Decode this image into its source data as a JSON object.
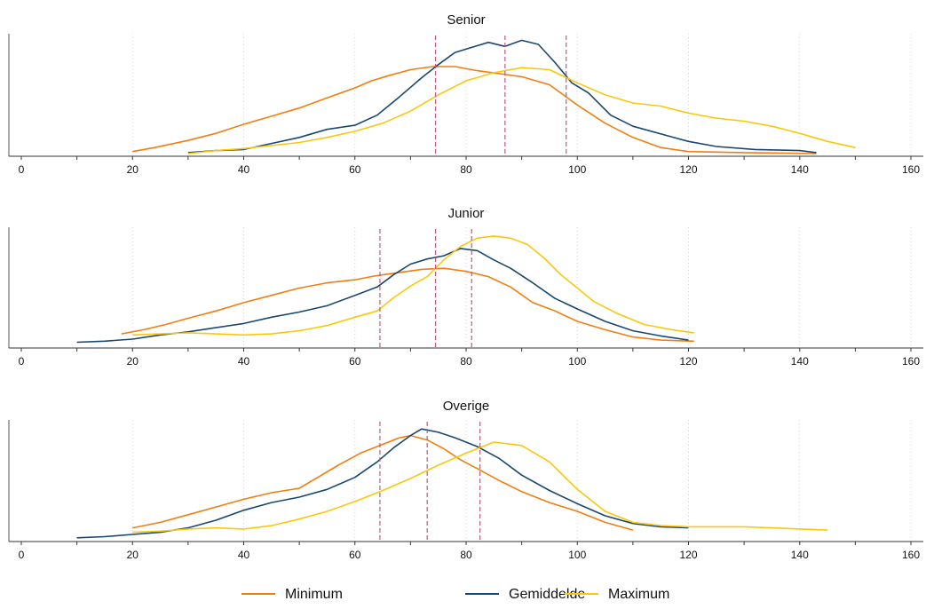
{
  "chart_data": {
    "type": "line",
    "xlim": [
      0,
      160
    ],
    "xticks": [
      "0",
      "20",
      "40",
      "60",
      "80",
      "100",
      "120",
      "140",
      "160"
    ],
    "xtick_values": [
      0,
      20,
      40,
      60,
      80,
      100,
      120,
      140,
      160
    ],
    "grid": "vertical dotted",
    "legend_position": "bottom",
    "legend": [
      {
        "label": "Minimum",
        "color": "#f47d0f"
      },
      {
        "label": "Gemiddelde",
        "color": "#1a476f"
      },
      {
        "label": "Maximum",
        "color": "#f9c80e"
      }
    ],
    "colors": {
      "minimum": "#f47d0f",
      "gemiddelde": "#1a476f",
      "maximum": "#f9c80e",
      "reference": "#c0587e"
    },
    "panels": [
      {
        "title": "Senior",
        "reference_lines_x": [
          74.5,
          87.0,
          98.0
        ],
        "series": [
          {
            "name": "Minimum",
            "points": [
              [
                20,
                0.02
              ],
              [
                24,
                0.06
              ],
              [
                30,
                0.13
              ],
              [
                35,
                0.2
              ],
              [
                40,
                0.29
              ],
              [
                45,
                0.37
              ],
              [
                50,
                0.45
              ],
              [
                55,
                0.55
              ],
              [
                60,
                0.65
              ],
              [
                63,
                0.72
              ],
              [
                66,
                0.77
              ],
              [
                70,
                0.83
              ],
              [
                74,
                0.86
              ],
              [
                78,
                0.86
              ],
              [
                82,
                0.82
              ],
              [
                86,
                0.79
              ],
              [
                90,
                0.76
              ],
              [
                95,
                0.68
              ],
              [
                100,
                0.48
              ],
              [
                105,
                0.3
              ],
              [
                110,
                0.16
              ],
              [
                115,
                0.06
              ],
              [
                120,
                0.02
              ],
              [
                130,
                0.01
              ],
              [
                143,
                0.0
              ]
            ]
          },
          {
            "name": "Gemiddelde",
            "points": [
              [
                30,
                0.01
              ],
              [
                35,
                0.03
              ],
              [
                40,
                0.04
              ],
              [
                45,
                0.1
              ],
              [
                50,
                0.16
              ],
              [
                55,
                0.24
              ],
              [
                60,
                0.28
              ],
              [
                64,
                0.38
              ],
              [
                68,
                0.56
              ],
              [
                72,
                0.75
              ],
              [
                75,
                0.88
              ],
              [
                78,
                1.0
              ],
              [
                81,
                1.05
              ],
              [
                84,
                1.1
              ],
              [
                87,
                1.06
              ],
              [
                90,
                1.12
              ],
              [
                93,
                1.08
              ],
              [
                96,
                0.9
              ],
              [
                99,
                0.7
              ],
              [
                102,
                0.6
              ],
              [
                106,
                0.38
              ],
              [
                110,
                0.27
              ],
              [
                116,
                0.18
              ],
              [
                120,
                0.12
              ],
              [
                125,
                0.07
              ],
              [
                132,
                0.04
              ],
              [
                140,
                0.03
              ],
              [
                143,
                0.01
              ]
            ]
          },
          {
            "name": "Maximum",
            "points": [
              [
                30,
                0.0
              ],
              [
                35,
                0.03
              ],
              [
                40,
                0.05
              ],
              [
                45,
                0.08
              ],
              [
                50,
                0.11
              ],
              [
                55,
                0.16
              ],
              [
                60,
                0.22
              ],
              [
                65,
                0.3
              ],
              [
                70,
                0.42
              ],
              [
                75,
                0.58
              ],
              [
                80,
                0.72
              ],
              [
                85,
                0.8
              ],
              [
                90,
                0.85
              ],
              [
                95,
                0.83
              ],
              [
                100,
                0.7
              ],
              [
                105,
                0.58
              ],
              [
                110,
                0.5
              ],
              [
                115,
                0.47
              ],
              [
                120,
                0.4
              ],
              [
                125,
                0.35
              ],
              [
                130,
                0.32
              ],
              [
                135,
                0.27
              ],
              [
                140,
                0.2
              ],
              [
                145,
                0.12
              ],
              [
                150,
                0.06
              ]
            ]
          }
        ]
      },
      {
        "title": "Junior",
        "reference_lines_x": [
          64.5,
          74.5,
          81.0
        ],
        "series": [
          {
            "name": "Minimum",
            "points": [
              [
                18,
                0.11
              ],
              [
                22,
                0.15
              ],
              [
                26,
                0.2
              ],
              [
                30,
                0.26
              ],
              [
                35,
                0.33
              ],
              [
                40,
                0.41
              ],
              [
                45,
                0.48
              ],
              [
                50,
                0.55
              ],
              [
                55,
                0.6
              ],
              [
                60,
                0.63
              ],
              [
                64,
                0.67
              ],
              [
                68,
                0.7
              ],
              [
                72,
                0.73
              ],
              [
                76,
                0.74
              ],
              [
                80,
                0.71
              ],
              [
                84,
                0.66
              ],
              [
                88,
                0.56
              ],
              [
                92,
                0.41
              ],
              [
                96,
                0.33
              ],
              [
                100,
                0.23
              ],
              [
                105,
                0.15
              ],
              [
                110,
                0.08
              ],
              [
                115,
                0.05
              ],
              [
                121,
                0.04
              ]
            ]
          },
          {
            "name": "Gemiddelde",
            "points": [
              [
                10,
                0.03
              ],
              [
                15,
                0.04
              ],
              [
                20,
                0.06
              ],
              [
                25,
                0.1
              ],
              [
                30,
                0.13
              ],
              [
                35,
                0.17
              ],
              [
                40,
                0.21
              ],
              [
                45,
                0.27
              ],
              [
                50,
                0.32
              ],
              [
                55,
                0.38
              ],
              [
                60,
                0.48
              ],
              [
                64,
                0.56
              ],
              [
                67,
                0.68
              ],
              [
                70,
                0.78
              ],
              [
                73,
                0.83
              ],
              [
                76,
                0.86
              ],
              [
                79,
                0.93
              ],
              [
                82,
                0.91
              ],
              [
                85,
                0.82
              ],
              [
                88,
                0.74
              ],
              [
                92,
                0.6
              ],
              [
                96,
                0.45
              ],
              [
                100,
                0.35
              ],
              [
                105,
                0.23
              ],
              [
                110,
                0.14
              ],
              [
                115,
                0.09
              ],
              [
                120,
                0.05
              ]
            ]
          },
          {
            "name": "Maximum",
            "points": [
              [
                20,
                0.1
              ],
              [
                25,
                0.11
              ],
              [
                30,
                0.12
              ],
              [
                35,
                0.11
              ],
              [
                40,
                0.1
              ],
              [
                45,
                0.11
              ],
              [
                50,
                0.14
              ],
              [
                55,
                0.19
              ],
              [
                60,
                0.27
              ],
              [
                64,
                0.33
              ],
              [
                67,
                0.46
              ],
              [
                70,
                0.57
              ],
              [
                73,
                0.66
              ],
              [
                76,
                0.82
              ],
              [
                79,
                0.95
              ],
              [
                82,
                1.03
              ],
              [
                85,
                1.05
              ],
              [
                88,
                1.03
              ],
              [
                91,
                0.97
              ],
              [
                94,
                0.84
              ],
              [
                97,
                0.68
              ],
              [
                100,
                0.55
              ],
              [
                103,
                0.42
              ],
              [
                107,
                0.31
              ],
              [
                112,
                0.2
              ],
              [
                117,
                0.15
              ],
              [
                121,
                0.12
              ]
            ]
          }
        ]
      },
      {
        "title": "Overige",
        "reference_lines_x": [
          64.5,
          73.0,
          82.5
        ],
        "series": [
          {
            "name": "Minimum",
            "points": [
              [
                20,
                0.1
              ],
              [
                25,
                0.15
              ],
              [
                30,
                0.22
              ],
              [
                35,
                0.29
              ],
              [
                40,
                0.36
              ],
              [
                45,
                0.42
              ],
              [
                50,
                0.46
              ],
              [
                53,
                0.55
              ],
              [
                57,
                0.67
              ],
              [
                61,
                0.78
              ],
              [
                65,
                0.86
              ],
              [
                68,
                0.92
              ],
              [
                70,
                0.94
              ],
              [
                73,
                0.9
              ],
              [
                76,
                0.82
              ],
              [
                79,
                0.72
              ],
              [
                82,
                0.64
              ],
              [
                86,
                0.53
              ],
              [
                90,
                0.43
              ],
              [
                95,
                0.33
              ],
              [
                100,
                0.25
              ],
              [
                105,
                0.15
              ],
              [
                110,
                0.08
              ]
            ]
          },
          {
            "name": "Gemiddelde",
            "points": [
              [
                10,
                0.01
              ],
              [
                15,
                0.02
              ],
              [
                20,
                0.04
              ],
              [
                25,
                0.06
              ],
              [
                30,
                0.1
              ],
              [
                35,
                0.17
              ],
              [
                40,
                0.26
              ],
              [
                45,
                0.33
              ],
              [
                50,
                0.38
              ],
              [
                55,
                0.45
              ],
              [
                60,
                0.56
              ],
              [
                64,
                0.7
              ],
              [
                67,
                0.83
              ],
              [
                70,
                0.94
              ],
              [
                72,
                1.0
              ],
              [
                75,
                0.97
              ],
              [
                78,
                0.92
              ],
              [
                82,
                0.84
              ],
              [
                86,
                0.73
              ],
              [
                90,
                0.58
              ],
              [
                95,
                0.44
              ],
              [
                100,
                0.32
              ],
              [
                105,
                0.21
              ],
              [
                110,
                0.14
              ],
              [
                115,
                0.11
              ],
              [
                120,
                0.1
              ]
            ]
          },
          {
            "name": "Maximum",
            "points": [
              [
                20,
                0.06
              ],
              [
                25,
                0.07
              ],
              [
                30,
                0.09
              ],
              [
                35,
                0.1
              ],
              [
                40,
                0.09
              ],
              [
                45,
                0.12
              ],
              [
                50,
                0.18
              ],
              [
                55,
                0.25
              ],
              [
                60,
                0.34
              ],
              [
                65,
                0.44
              ],
              [
                70,
                0.55
              ],
              [
                75,
                0.67
              ],
              [
                80,
                0.78
              ],
              [
                85,
                0.88
              ],
              [
                90,
                0.85
              ],
              [
                95,
                0.7
              ],
              [
                100,
                0.45
              ],
              [
                105,
                0.25
              ],
              [
                110,
                0.15
              ],
              [
                115,
                0.12
              ],
              [
                120,
                0.11
              ],
              [
                125,
                0.11
              ],
              [
                130,
                0.11
              ],
              [
                135,
                0.1
              ],
              [
                140,
                0.09
              ],
              [
                145,
                0.08
              ]
            ]
          }
        ]
      }
    ]
  }
}
